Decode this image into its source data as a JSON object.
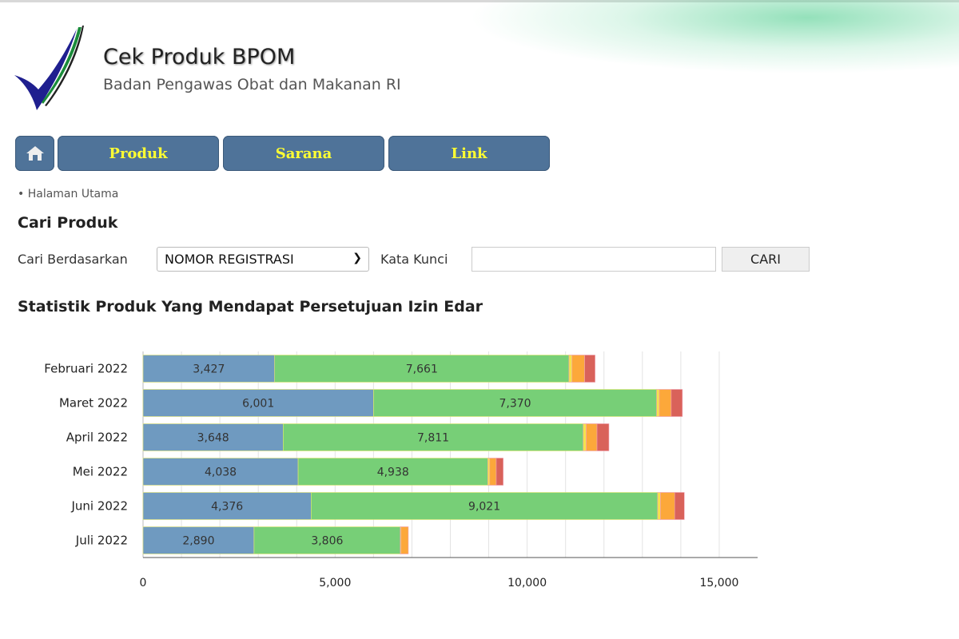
{
  "header": {
    "title": "Cek Produk BPOM",
    "subtitle": "Badan Pengawas Obat dan Makanan RI"
  },
  "nav": {
    "home_icon": "home-icon",
    "items": [
      {
        "label": "Produk"
      },
      {
        "label": "Sarana"
      },
      {
        "label": "Link"
      }
    ],
    "text_color": "#ffff33",
    "bg_color": "#4f7399"
  },
  "breadcrumb": "• Halaman Utama",
  "search": {
    "heading": "Cari Produk",
    "by_label": "Cari Berdasarkan",
    "by_value": "NOMOR REGISTRASI",
    "keyword_label": "Kata Kunci",
    "keyword_value": "",
    "button": "CARI"
  },
  "stats_heading": "Statistik Produk Yang Mendapat Persetujuan Izin Edar",
  "chart_data": {
    "type": "bar",
    "orientation": "horizontal",
    "stacked": true,
    "categories": [
      "Februari 2022",
      "Maret 2022",
      "April 2022",
      "Mei 2022",
      "Juni 2022",
      "Juli 2022"
    ],
    "series": [
      {
        "color": "#6f9ac0",
        "values": [
          3427,
          6001,
          3648,
          4038,
          4376,
          2890
        ]
      },
      {
        "color": "#77cf77",
        "values": [
          7661,
          7370,
          7811,
          4938,
          9021,
          3806
        ]
      },
      {
        "color": "#f5e34a",
        "values": [
          80,
          70,
          80,
          50,
          75,
          20
        ]
      },
      {
        "color": "#fca83a",
        "values": [
          330,
          310,
          280,
          170,
          370,
          190
        ]
      },
      {
        "color": "#d9625a",
        "values": [
          270,
          290,
          310,
          180,
          250,
          0
        ]
      }
    ],
    "data_labels_series": [
      0,
      1
    ],
    "xlim": [
      0,
      16000
    ],
    "xticks": [
      0,
      5000,
      10000,
      15000
    ],
    "xtick_labels": [
      "0",
      "5,000",
      "10,000",
      "15,000"
    ],
    "grid": true
  }
}
